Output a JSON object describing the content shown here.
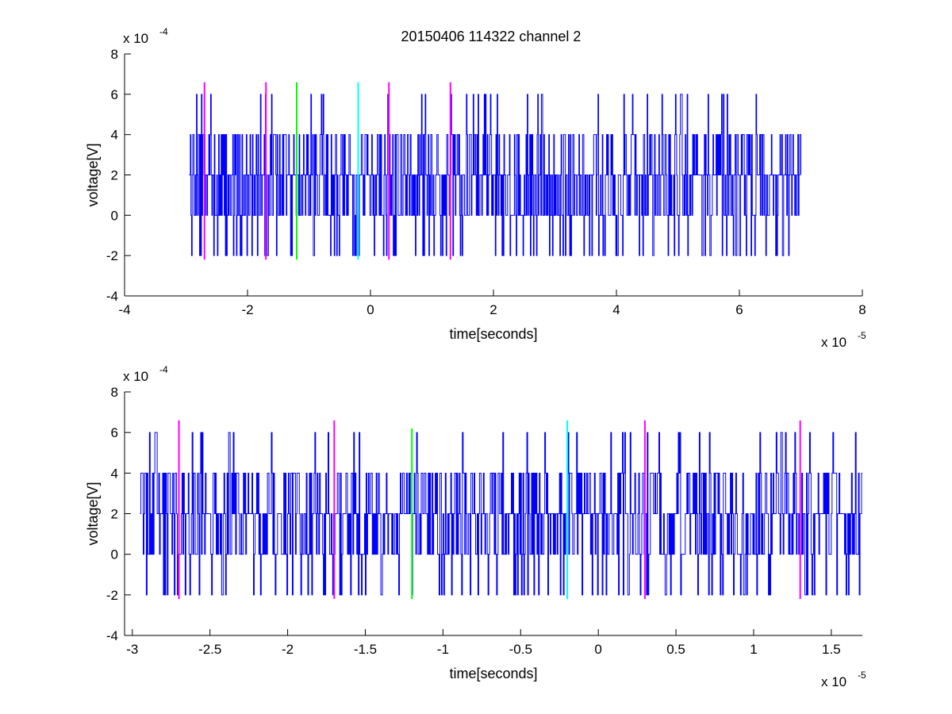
{
  "title": "20150406 114322 channel 2",
  "colors": {
    "signal": "#0000ff",
    "marker_magenta": "#ff00ff",
    "marker_green": "#00ff00",
    "marker_cyan": "#00ffff",
    "axis": "#000000",
    "background": "#ffffff"
  },
  "chart_data": [
    {
      "type": "line",
      "title": "20150406 114322 channel 2",
      "xlabel": "time[seconds]",
      "ylabel": "voltage[V]",
      "x_exponent_label": "x 10",
      "x_exponent": "-5",
      "y_exponent_label": "x 10",
      "y_exponent": "-4",
      "xlim": [
        -4e-05,
        8e-05
      ],
      "ylim": [
        -0.0004,
        0.0008
      ],
      "x_ticks": [
        -4,
        -2,
        0,
        2,
        4,
        6,
        8
      ],
      "y_ticks": [
        -4,
        -2,
        0,
        2,
        4,
        6,
        8
      ],
      "x_tick_labels": [
        "-4",
        "-2",
        "0",
        "2",
        "4",
        "6",
        "8"
      ],
      "y_tick_labels": [
        "-4",
        "-2",
        "0",
        "2",
        "4",
        "6",
        "8"
      ],
      "grid": false,
      "series": [
        {
          "color": "#0000ff",
          "x_start": -2.95e-05,
          "x_end": 7e-05,
          "levels": [
            -0.0002,
            0,
            0.0002,
            0.0004,
            0.0006
          ],
          "baseline": 0.0002,
          "description_range": [
            -0.0002,
            0.0006
          ]
        }
      ],
      "markers": [
        {
          "x": -2.7e-05,
          "ymin": -0.00022,
          "ymax": 0.00066,
          "color": "#ff00ff"
        },
        {
          "x": -1.7e-05,
          "ymin": -0.00022,
          "ymax": 0.00066,
          "color": "#ff00ff"
        },
        {
          "x": -1.2e-05,
          "ymin": -0.00022,
          "ymax": 0.00066,
          "color": "#00ff00"
        },
        {
          "x": -2e-06,
          "ymin": -0.00022,
          "ymax": 0.00066,
          "color": "#00ffff"
        },
        {
          "x": 3e-06,
          "ymin": -0.00022,
          "ymax": 0.00066,
          "color": "#ff00ff"
        },
        {
          "x": 1.3e-05,
          "ymin": -0.00022,
          "ymax": 0.00066,
          "color": "#ff00ff"
        }
      ]
    },
    {
      "type": "line",
      "xlabel": "time[seconds]",
      "ylabel": "voltage[V]",
      "x_exponent_label": "x 10",
      "x_exponent": "-5",
      "y_exponent_label": "x 10",
      "y_exponent": "-4",
      "xlim": [
        -3.05e-05,
        1.7e-05
      ],
      "ylim": [
        -0.0004,
        0.0008
      ],
      "x_ticks": [
        -3,
        -2.5,
        -2,
        -1.5,
        -1,
        -0.5,
        0,
        0.5,
        1,
        1.5
      ],
      "y_ticks": [
        -4,
        -2,
        0,
        2,
        4,
        6,
        8
      ],
      "x_tick_labels": [
        "-3",
        "-2.5",
        "-2",
        "-1.5",
        "-1",
        "-0.5",
        "0",
        "0.5",
        "1",
        "1.5"
      ],
      "y_tick_labels": [
        "-4",
        "-2",
        "0",
        "2",
        "4",
        "6",
        "8"
      ],
      "grid": false,
      "series": [
        {
          "color": "#0000ff",
          "x_start": -2.95e-05,
          "x_end": 1.7e-05,
          "levels": [
            -0.0002,
            0,
            0.0002,
            0.0004,
            0.0006
          ],
          "baseline": 0.0002,
          "description_range": [
            -0.0002,
            0.0006
          ]
        }
      ],
      "markers": [
        {
          "x": -2.7e-05,
          "ymin": -0.00022,
          "ymax": 0.00066,
          "color": "#ff00ff"
        },
        {
          "x": -1.7e-05,
          "ymin": -0.00022,
          "ymax": 0.00066,
          "color": "#ff00ff"
        },
        {
          "x": -1.2e-05,
          "ymin": -0.00022,
          "ymax": 0.00062,
          "color": "#00ff00"
        },
        {
          "x": -2e-06,
          "ymin": -0.00022,
          "ymax": 0.00066,
          "color": "#00ffff"
        },
        {
          "x": 3e-06,
          "ymin": -0.00022,
          "ymax": 0.00066,
          "color": "#ff00ff"
        },
        {
          "x": 1.3e-05,
          "ymin": -0.00022,
          "ymax": 0.00066,
          "color": "#ff00ff"
        }
      ]
    }
  ]
}
